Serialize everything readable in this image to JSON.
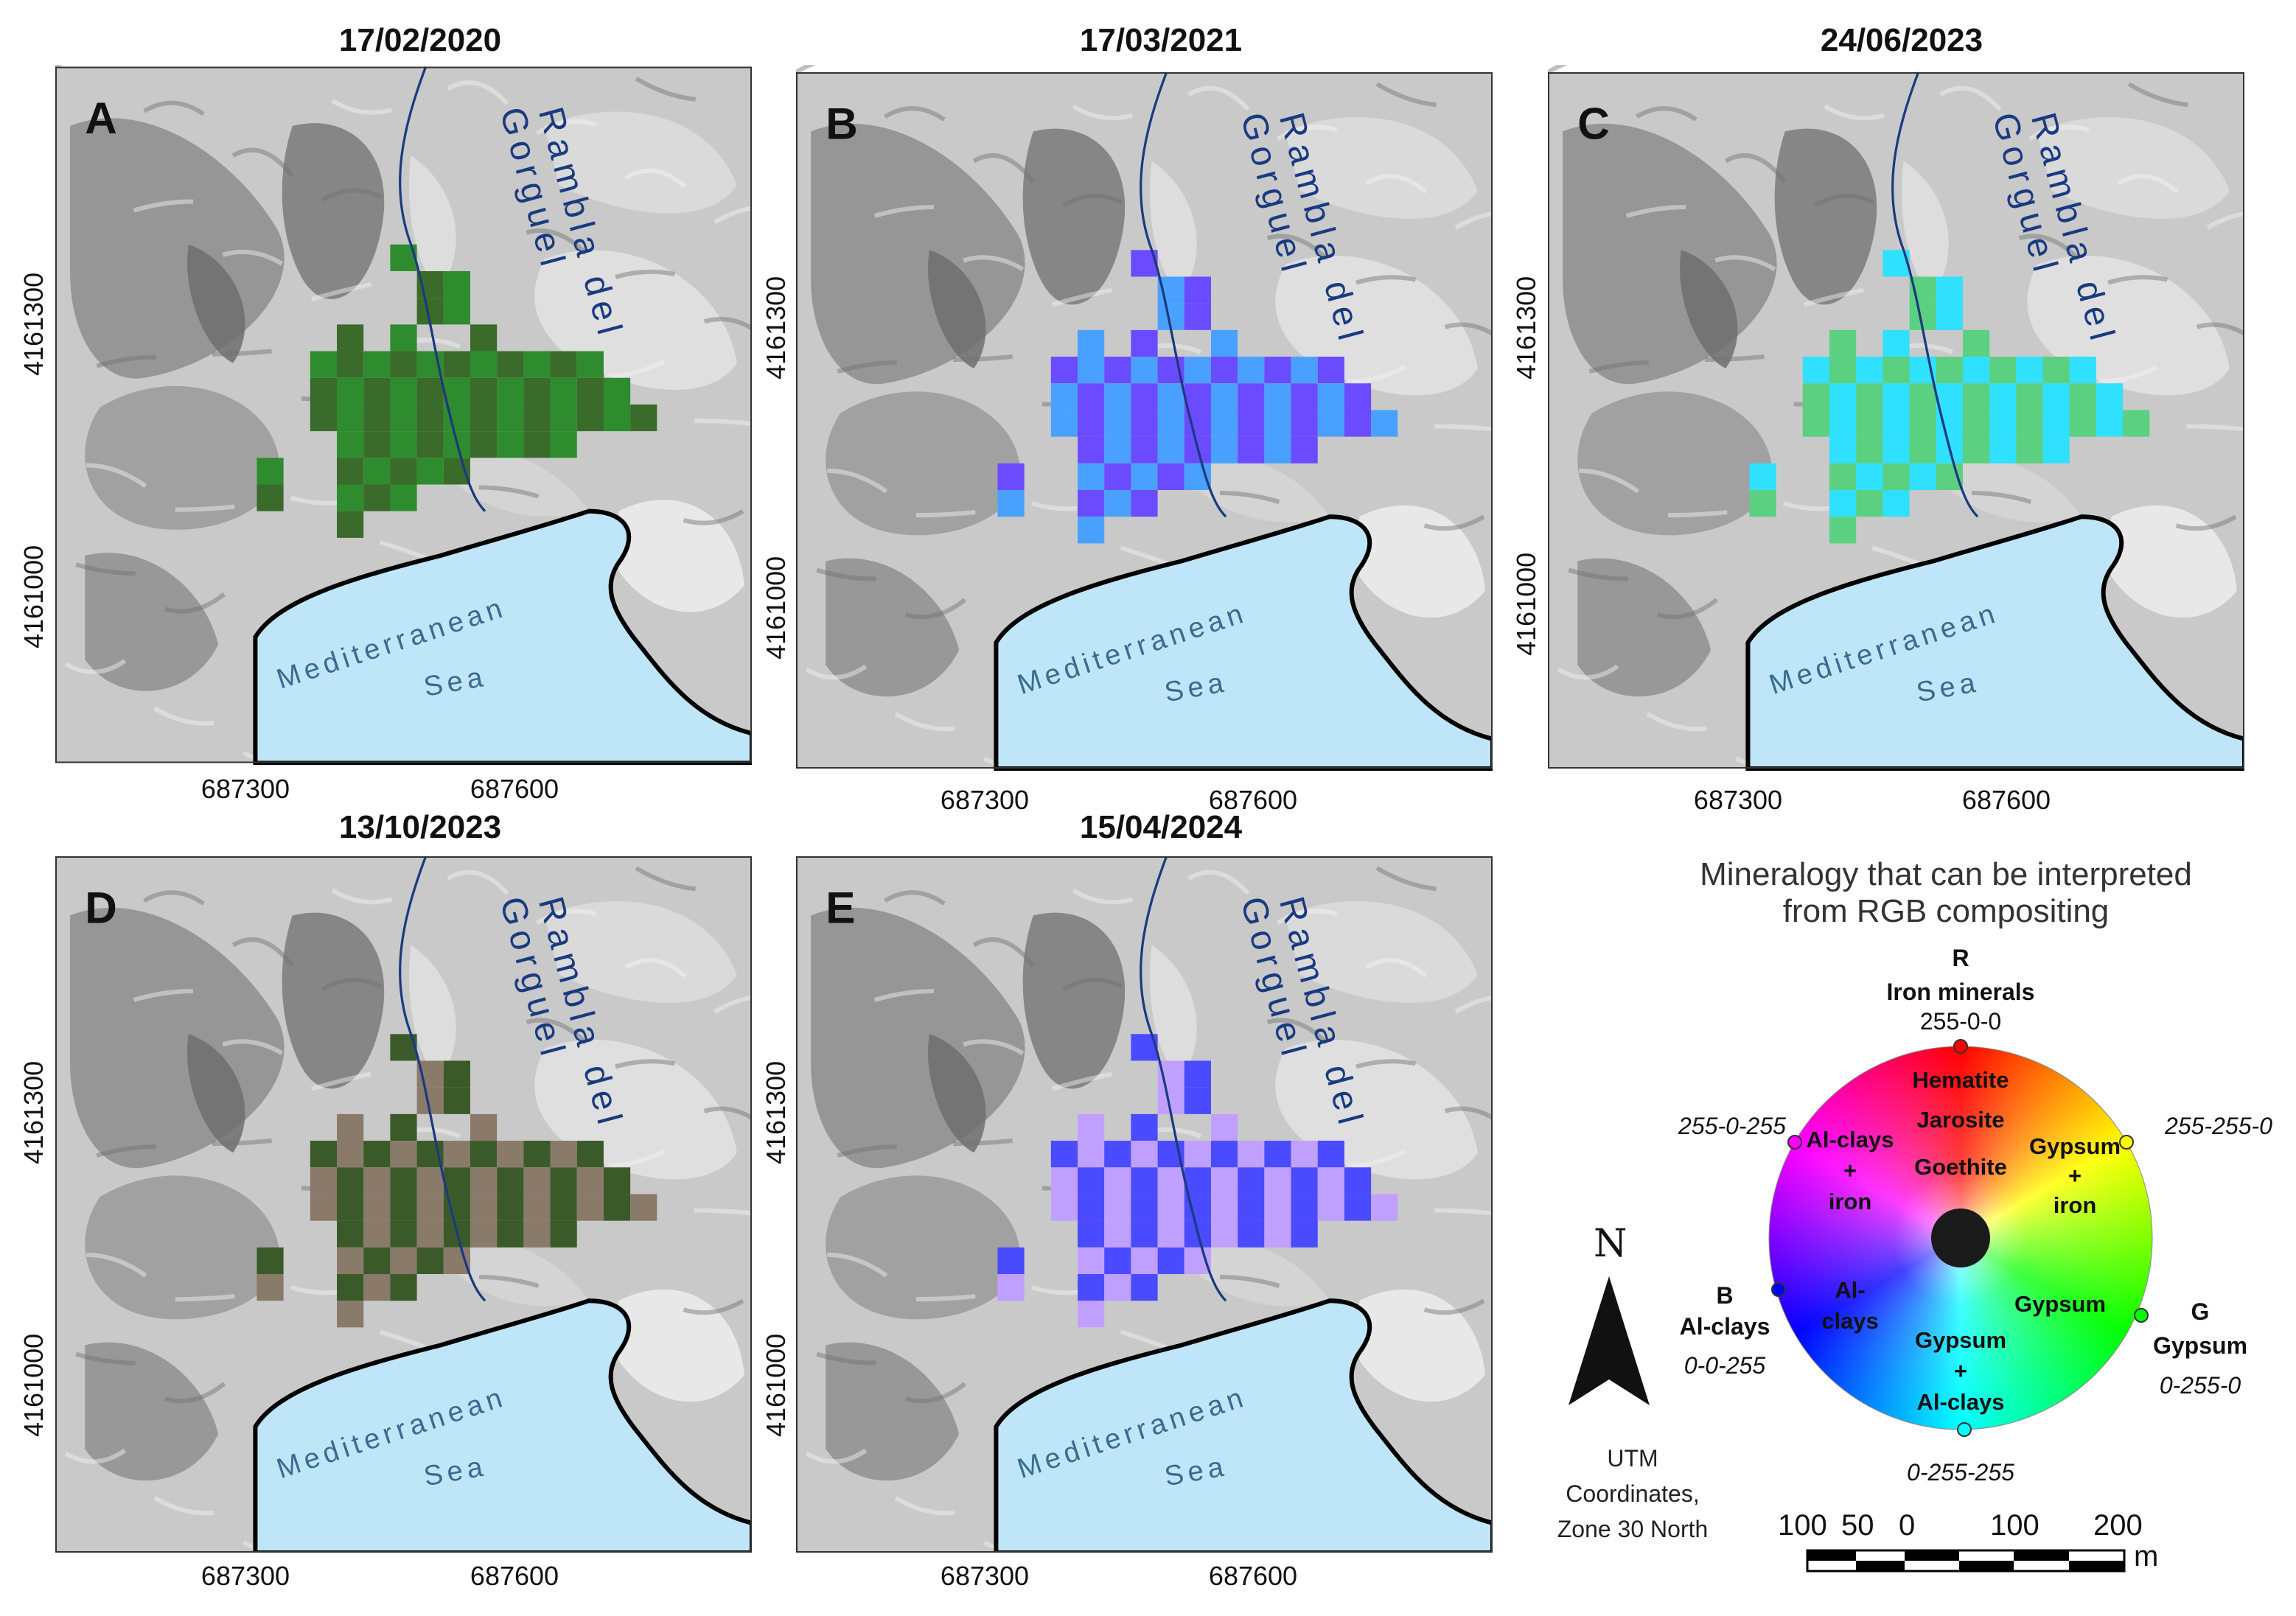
{
  "panels": [
    {
      "id": "A",
      "letter": "A",
      "date": "17/02/2020",
      "palette": "a"
    },
    {
      "id": "B",
      "letter": "B",
      "date": "17/03/2021",
      "palette": "b"
    },
    {
      "id": "C",
      "letter": "C",
      "date": "24/06/2023",
      "palette": "c"
    },
    {
      "id": "D",
      "letter": "D",
      "date": "13/10/2023",
      "palette": "d"
    },
    {
      "id": "E",
      "letter": "E",
      "date": "15/04/2024",
      "palette": "e"
    }
  ],
  "map_labels": {
    "river_line1": "Rambla del",
    "river_line2": "Gorguel",
    "sea_line1": "Mediterranean",
    "sea_line2": "Sea"
  },
  "x_ticks": [
    "687300",
    "687600"
  ],
  "y_ticks": [
    "4161300",
    "4161000"
  ],
  "legend": {
    "title_line1": "Mineralogy that can be interpreted",
    "title_line2": "from RGB compositing",
    "r_letter": "R",
    "r_name": "Iron minerals",
    "r_code": "255-0-0",
    "magenta_code": "255-0-255",
    "yellow_code": "255-255-0",
    "b_letter": "B",
    "b_name": "Al-clays",
    "b_code": "0-0-255",
    "g_letter": "G",
    "g_name": "Gypsum",
    "g_code": "0-255-0",
    "cyan_code": "0-255-255",
    "wheel_hematite": "Hematite",
    "wheel_jarosite": "Jarosite",
    "wheel_goethite": "Goethite",
    "wheel_alclays_iron_1": "Al-clays",
    "wheel_alclays_iron_2": "+",
    "wheel_alclays_iron_3": "iron",
    "wheel_gypsum_iron_1": "Gypsum",
    "wheel_gypsum_iron_2": "+",
    "wheel_gypsum_iron_3": "iron",
    "wheel_alclays_1": "Al-",
    "wheel_alclays_2": "clays",
    "wheel_gypsum": "Gypsum",
    "wheel_gyp_al_1": "Gypsum",
    "wheel_gyp_al_2": "+",
    "wheel_gyp_al_3": "Al-clays"
  },
  "north": {
    "letter": "N"
  },
  "utm": {
    "line1": "UTM",
    "line2": "Coordinates,",
    "line3": "Zone 30 North"
  },
  "scale": {
    "labels": [
      "100",
      "50",
      "0",
      "100",
      "200"
    ],
    "unit": "m"
  },
  "colors": {
    "sea": "#bfe6f8",
    "coast": "#000000",
    "river": "#1a3a80",
    "label_blue": "#1a3a80"
  }
}
